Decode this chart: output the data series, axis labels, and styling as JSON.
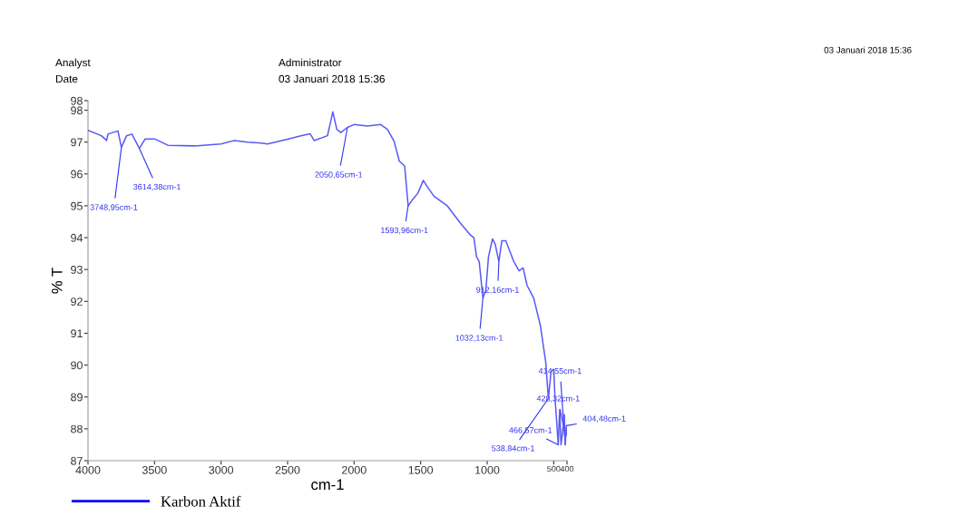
{
  "chart_data": {
    "type": "line",
    "xlabel": "cm-1",
    "ylabel": "% T",
    "xlim": [
      4000,
      400
    ],
    "xticks": [
      4000,
      3500,
      3000,
      2500,
      2000,
      1500,
      1000,
      500,
      400
    ],
    "ylim": [
      87,
      98.3
    ],
    "yticks": [
      87,
      88,
      89,
      90,
      91,
      92,
      93,
      94,
      95,
      96,
      97,
      98,
      {
        "value": 98.3,
        "label": "98"
      }
    ],
    "grid": false,
    "legend": "bottom left",
    "marker": "none",
    "line_style": "solid",
    "series": [
      {
        "name": "Karbon Aktif",
        "color": "#5a5af5",
        "x": [
          4000,
          3900,
          3860,
          3850,
          3775,
          3749,
          3710,
          3670,
          3614,
          3570,
          3500,
          3400,
          3200,
          3000,
          2900,
          2800,
          2700,
          2650,
          2500,
          2400,
          2330,
          2300,
          2200,
          2160,
          2130,
          2100,
          2050,
          2000,
          1900,
          1800,
          1750,
          1700,
          1660,
          1620,
          1594,
          1560,
          1520,
          1480,
          1450,
          1400,
          1300,
          1200,
          1130,
          1100,
          1080,
          1060,
          1032,
          1010,
          990,
          960,
          940,
          912,
          890,
          860,
          800,
          760,
          730,
          700,
          650,
          600,
          560,
          540,
          520,
          500,
          490,
          480,
          466,
          455,
          445,
          428,
          420,
          414,
          404,
          400
        ],
        "values": [
          97.37,
          97.2,
          97.05,
          97.25,
          97.35,
          96.83,
          97.2,
          97.25,
          96.8,
          97.1,
          97.1,
          96.9,
          96.88,
          96.94,
          97.05,
          97.0,
          96.97,
          96.94,
          97.09,
          97.2,
          97.26,
          97.05,
          97.2,
          97.95,
          97.4,
          97.3,
          97.46,
          97.55,
          97.5,
          97.55,
          97.4,
          97.03,
          96.4,
          96.25,
          95.0,
          95.2,
          95.4,
          95.8,
          95.6,
          95.3,
          95.0,
          94.45,
          94.1,
          94.0,
          93.4,
          93.25,
          92.1,
          92.35,
          93.4,
          93.96,
          93.8,
          93.25,
          93.9,
          93.9,
          93.25,
          92.96,
          93.05,
          92.5,
          92.1,
          91.24,
          90.1,
          88.95,
          89.8,
          89.87,
          88.95,
          88.38,
          87.5,
          88.6,
          87.5,
          88.1,
          88.45,
          87.5,
          88.1,
          87.8
        ]
      }
    ],
    "annotations": [
      {
        "text": "3748,95cm-1",
        "x": 3749,
        "y": 96.83
      },
      {
        "text": "3614,38cm-1",
        "x": 3614,
        "y": 96.8
      },
      {
        "text": "2050,65cm-1",
        "x": 2050,
        "y": 97.46
      },
      {
        "text": "1593,96cm-1",
        "x": 1594,
        "y": 95.0
      },
      {
        "text": "1032,13cm-1",
        "x": 1032,
        "y": 92.1
      },
      {
        "text": "912,16cm-1",
        "x": 912,
        "y": 93.25
      },
      {
        "text": "414,55cm-1",
        "x": 414,
        "y": 87.5
      },
      {
        "text": "428,32cm-1",
        "x": 428,
        "y": 88.1
      },
      {
        "text": "404,48cm-1",
        "x": 404,
        "y": 88.1
      },
      {
        "text": "466,57cm-1",
        "x": 466,
        "y": 87.5
      },
      {
        "text": "538,84cm-1",
        "x": 540,
        "y": 88.95
      },
      "Analyst",
      "Date",
      "Administrator",
      "03 Januari 2018 15:36",
      "03 Januari 2018 15:36"
    ]
  }
}
